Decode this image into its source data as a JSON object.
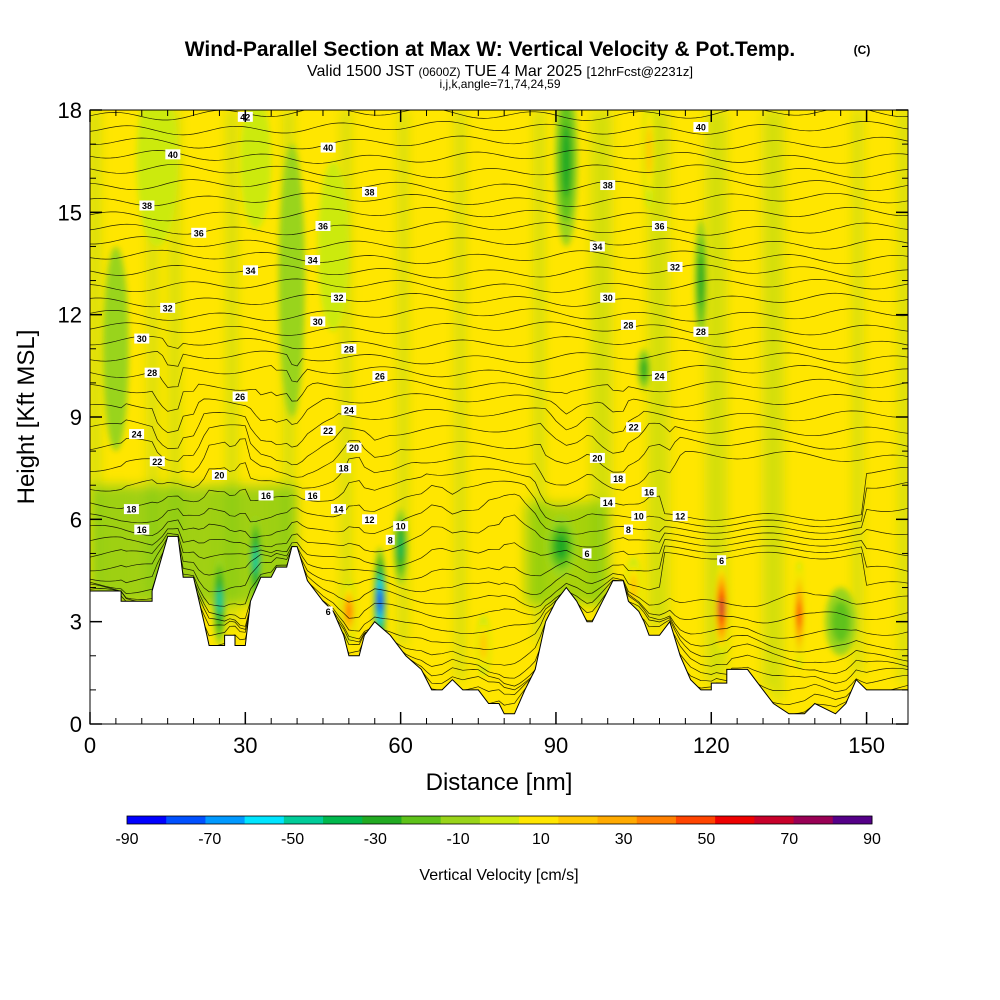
{
  "header": {
    "title_main": "Wind-Parallel Section at Max W: Vertical Velocity & Pot.Temp.",
    "title_mark": "(C)",
    "sub_pre": "Valid 1500 JST",
    "sub_z": "(0600Z)",
    "sub_date": "TUE 4 Mar 2025",
    "sub_fcst": "[12hrFcst@2231z]",
    "params": "i,j,k,angle=71,74,24,59"
  },
  "chart_data": {
    "type": "heatmap",
    "title": "Wind-Parallel Section at Max W: Vertical Velocity & Pot.Temp.",
    "xlabel": "Distance [nm]",
    "ylabel": "Height [Kft MSL]",
    "xlim": [
      0,
      158
    ],
    "ylim": [
      0,
      18
    ],
    "xticks": [
      0,
      30,
      60,
      90,
      120,
      150
    ],
    "yticks": [
      0,
      3,
      6,
      9,
      12,
      15,
      18
    ],
    "colorbar": {
      "label": "Vertical Velocity [cm/s]",
      "tick_labels": [
        "-90",
        "-70",
        "-50",
        "-30",
        "-10",
        "10",
        "30",
        "50",
        "70",
        "90"
      ],
      "bounds": [
        -90,
        -80,
        -70,
        -60,
        -50,
        -40,
        -30,
        -20,
        -10,
        0,
        10,
        20,
        30,
        40,
        50,
        60,
        70,
        80,
        90
      ],
      "colors": [
        "#0000ff",
        "#0050ff",
        "#0099ff",
        "#00e5ff",
        "#00cc99",
        "#00b84d",
        "#22aa22",
        "#5ec21a",
        "#99d41a",
        "#ccea10",
        "#ffe600",
        "#ffc800",
        "#ffaa00",
        "#ff8000",
        "#ff4400",
        "#ee0000",
        "#c8002a",
        "#990055",
        "#550088"
      ]
    },
    "terrain": [
      [
        0,
        3.9
      ],
      [
        6,
        3.9
      ],
      [
        6,
        3.6
      ],
      [
        12,
        3.6
      ],
      [
        12,
        3.9
      ],
      [
        15,
        5.5
      ],
      [
        17,
        5.5
      ],
      [
        18,
        4.3
      ],
      [
        20,
        4.3
      ],
      [
        22,
        3.0
      ],
      [
        23,
        2.3
      ],
      [
        26,
        2.3
      ],
      [
        26,
        2.6
      ],
      [
        28,
        2.6
      ],
      [
        28,
        2.3
      ],
      [
        30,
        2.3
      ],
      [
        31,
        3.6
      ],
      [
        33,
        4.3
      ],
      [
        35,
        4.3
      ],
      [
        36,
        4.6
      ],
      [
        38,
        4.6
      ],
      [
        39,
        5.2
      ],
      [
        40,
        5.2
      ],
      [
        42,
        4.2
      ],
      [
        45,
        3.6
      ],
      [
        47,
        3.3
      ],
      [
        49,
        2.6
      ],
      [
        50,
        2.0
      ],
      [
        52,
        2.0
      ],
      [
        53,
        2.6
      ],
      [
        55,
        3.0
      ],
      [
        58,
        2.6
      ],
      [
        61,
        2.0
      ],
      [
        64,
        1.6
      ],
      [
        66,
        1.0
      ],
      [
        68,
        1.0
      ],
      [
        70,
        1.3
      ],
      [
        72,
        1.0
      ],
      [
        75,
        1.0
      ],
      [
        77,
        0.6
      ],
      [
        79,
        0.6
      ],
      [
        80,
        0.3
      ],
      [
        82,
        0.3
      ],
      [
        84,
        1.0
      ],
      [
        86,
        1.6
      ],
      [
        88,
        3.0
      ],
      [
        90,
        3.6
      ],
      [
        92,
        4.0
      ],
      [
        94,
        3.6
      ],
      [
        96,
        3.0
      ],
      [
        97,
        3.0
      ],
      [
        99,
        3.6
      ],
      [
        100,
        3.9
      ],
      [
        101,
        4.2
      ],
      [
        103,
        4.2
      ],
      [
        104,
        3.6
      ],
      [
        106,
        3.3
      ],
      [
        107,
        3.0
      ],
      [
        108,
        2.6
      ],
      [
        110,
        2.6
      ],
      [
        112,
        3.0
      ],
      [
        114,
        2.0
      ],
      [
        116,
        1.3
      ],
      [
        118,
        1.0
      ],
      [
        120,
        1.0
      ],
      [
        120,
        1.2
      ],
      [
        123,
        1.2
      ],
      [
        123,
        1.6
      ],
      [
        127,
        1.6
      ],
      [
        130,
        1.0
      ],
      [
        132,
        0.6
      ],
      [
        135,
        0.3
      ],
      [
        138,
        0.3
      ],
      [
        140,
        0.6
      ],
      [
        144,
        0.3
      ],
      [
        146,
        0.6
      ],
      [
        148,
        1.3
      ],
      [
        150,
        1.0
      ],
      [
        158,
        1.0
      ]
    ],
    "updrafts": [
      [
        122,
        3.4,
        1.4,
        1.4,
        82
      ],
      [
        137,
        3.2,
        1.0,
        1.6,
        66
      ],
      [
        105,
        4.0,
        1.6,
        0.9,
        36
      ],
      [
        50,
        3.3,
        1.5,
        0.9,
        58
      ],
      [
        76,
        2.3,
        1.4,
        0.9,
        30
      ],
      [
        108,
        16.8,
        1.2,
        1.7,
        38
      ],
      [
        32,
        16.5,
        3,
        2,
        18
      ],
      [
        13,
        16.5,
        4,
        2.5,
        16
      ],
      [
        47,
        14,
        3,
        2.5,
        16
      ]
    ],
    "downdrafts": [
      [
        25,
        3.6,
        1.2,
        1.3,
        -56
      ],
      [
        32,
        4.8,
        1.2,
        1.3,
        -52
      ],
      [
        56,
        3.6,
        1.2,
        1.6,
        -82
      ],
      [
        60,
        5.2,
        1.3,
        1.1,
        -48
      ],
      [
        91,
        5.2,
        3,
        0.9,
        -36
      ],
      [
        92,
        16.5,
        2.2,
        2.5,
        -30
      ],
      [
        118,
        13,
        1.2,
        1.8,
        -30
      ],
      [
        107,
        10.4,
        1.2,
        0.6,
        -30
      ],
      [
        5,
        11,
        2.5,
        3,
        -14
      ],
      [
        39,
        13,
        2.5,
        4,
        -14
      ],
      [
        145,
        3,
        3,
        1,
        -24
      ]
    ],
    "isentrope_labels": [
      [
        30,
        17.8,
        "42"
      ],
      [
        16,
        16.7,
        "40"
      ],
      [
        46,
        16.9,
        "40"
      ],
      [
        11,
        15.2,
        "38"
      ],
      [
        54,
        15.6,
        "38"
      ],
      [
        21,
        14.4,
        "36"
      ],
      [
        45,
        14.6,
        "36"
      ],
      [
        31,
        13.3,
        "34"
      ],
      [
        43,
        13.6,
        "34"
      ],
      [
        15,
        12.2,
        "32"
      ],
      [
        48,
        12.5,
        "32"
      ],
      [
        10,
        11.3,
        "30"
      ],
      [
        44,
        11.8,
        "30"
      ],
      [
        12,
        10.3,
        "28"
      ],
      [
        50,
        11.0,
        "28"
      ],
      [
        29,
        9.6,
        "26"
      ],
      [
        56,
        10.2,
        "26"
      ],
      [
        9,
        8.5,
        "24"
      ],
      [
        50,
        9.2,
        "24"
      ],
      [
        13,
        7.7,
        "22"
      ],
      [
        46,
        8.6,
        "22"
      ],
      [
        25,
        7.3,
        "20"
      ],
      [
        51,
        8.1,
        "20"
      ],
      [
        8,
        6.3,
        "18"
      ],
      [
        49,
        7.5,
        "18"
      ],
      [
        34,
        6.7,
        "16"
      ],
      [
        43,
        6.7,
        "16"
      ],
      [
        10,
        5.7,
        "16"
      ],
      [
        48,
        6.3,
        "14"
      ],
      [
        54,
        6.0,
        "12"
      ],
      [
        60,
        5.8,
        "10"
      ],
      [
        58,
        5.4,
        "8"
      ],
      [
        100,
        15.8,
        "38"
      ],
      [
        110,
        14.6,
        "36"
      ],
      [
        98,
        14.0,
        "34"
      ],
      [
        113,
        13.4,
        "32"
      ],
      [
        100,
        12.5,
        "30"
      ],
      [
        104,
        11.7,
        "28"
      ],
      [
        118,
        11.5,
        "28"
      ],
      [
        110,
        10.2,
        "24"
      ],
      [
        105,
        8.7,
        "22"
      ],
      [
        98,
        7.8,
        "20"
      ],
      [
        102,
        7.2,
        "18"
      ],
      [
        108,
        6.8,
        "16"
      ],
      [
        100,
        6.5,
        "14"
      ],
      [
        114,
        6.1,
        "12"
      ],
      [
        106,
        6.1,
        "10"
      ],
      [
        104,
        5.7,
        "8"
      ],
      [
        96,
        5.0,
        "6"
      ],
      [
        122,
        4.8,
        "6"
      ],
      [
        46,
        3.3,
        "6"
      ],
      [
        118,
        17.5,
        "40"
      ]
    ]
  }
}
